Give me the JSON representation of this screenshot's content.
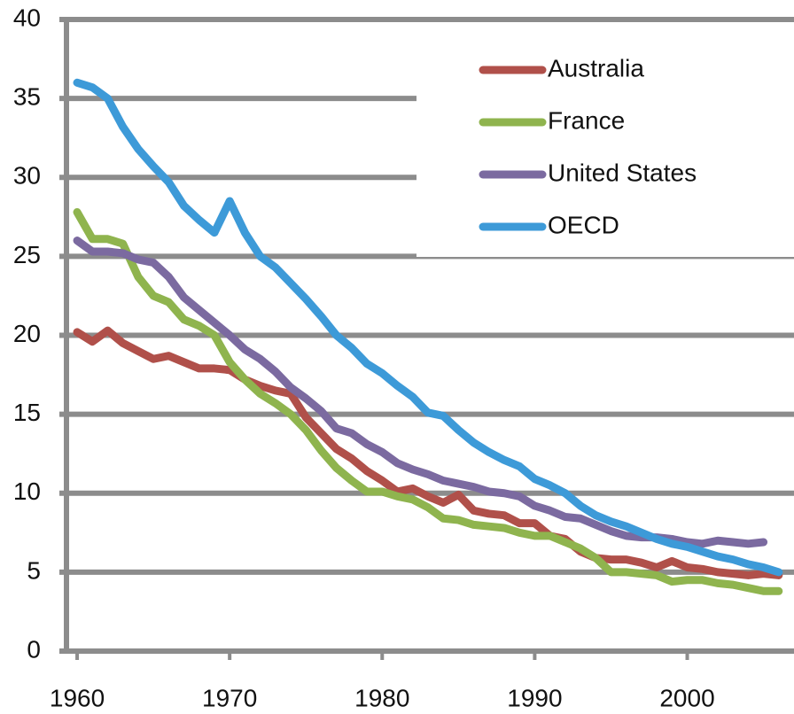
{
  "chart_data": {
    "type": "line",
    "x": [
      1960,
      1961,
      1962,
      1963,
      1964,
      1965,
      1966,
      1967,
      1968,
      1969,
      1970,
      1971,
      1972,
      1973,
      1974,
      1975,
      1976,
      1977,
      1978,
      1979,
      1980,
      1981,
      1982,
      1983,
      1984,
      1985,
      1986,
      1987,
      1988,
      1989,
      1990,
      1991,
      1992,
      1993,
      1994,
      1995,
      1996,
      1997,
      1998,
      1999,
      2000,
      2001,
      2002,
      2003,
      2004,
      2005,
      2006
    ],
    "series": [
      {
        "name": "Australia",
        "color": "#b0504a",
        "values": [
          20.2,
          19.6,
          20.3,
          19.5,
          19.0,
          18.5,
          18.7,
          18.3,
          17.9,
          17.9,
          17.8,
          17.2,
          16.8,
          16.5,
          16.3,
          14.8,
          13.8,
          12.8,
          12.2,
          11.4,
          10.8,
          10.1,
          10.3,
          9.8,
          9.4,
          9.9,
          8.9,
          8.7,
          8.6,
          8.1,
          8.1,
          7.3,
          7.1,
          6.3,
          5.9,
          5.8,
          5.8,
          5.6,
          5.3,
          5.7,
          5.3,
          5.2,
          5.0,
          4.9,
          4.8,
          4.9,
          4.8
        ]
      },
      {
        "name": "France",
        "color": "#8fb44e",
        "values": [
          27.8,
          26.1,
          26.1,
          25.8,
          23.7,
          22.5,
          22.1,
          21.0,
          20.6,
          20.0,
          18.3,
          17.2,
          16.3,
          15.7,
          15.0,
          14.0,
          12.7,
          11.6,
          10.8,
          10.1,
          10.1,
          9.8,
          9.6,
          9.1,
          8.4,
          8.3,
          8.0,
          7.9,
          7.8,
          7.5,
          7.3,
          7.3,
          6.9,
          6.5,
          5.9,
          5.0,
          5.0,
          4.9,
          4.8,
          4.4,
          4.5,
          4.5,
          4.3,
          4.2,
          4.0,
          3.8,
          3.8
        ]
      },
      {
        "name": "United States",
        "color": "#7b6aa0",
        "values": [
          26.0,
          25.3,
          25.3,
          25.2,
          24.8,
          24.6,
          23.7,
          22.4,
          21.6,
          20.8,
          20.0,
          19.1,
          18.5,
          17.7,
          16.7,
          16.0,
          15.2,
          14.1,
          13.8,
          13.1,
          12.6,
          11.9,
          11.5,
          11.2,
          10.8,
          10.6,
          10.4,
          10.1,
          10.0,
          9.8,
          9.2,
          8.9,
          8.5,
          8.4,
          8.0,
          7.6,
          7.3,
          7.2,
          7.2,
          7.1,
          6.9,
          6.8,
          7.0,
          6.9,
          6.8,
          6.9,
          null
        ]
      },
      {
        "name": "OECD",
        "color": "#3d9ad8",
        "values": [
          36.0,
          35.7,
          35.0,
          33.2,
          31.8,
          30.7,
          29.7,
          28.2,
          27.3,
          26.5,
          28.5,
          26.5,
          25.0,
          24.3,
          23.3,
          22.3,
          21.2,
          20.0,
          19.2,
          18.2,
          17.6,
          16.8,
          16.1,
          15.1,
          14.9,
          14.0,
          13.2,
          12.6,
          12.1,
          11.7,
          10.9,
          10.5,
          10.0,
          9.2,
          8.6,
          8.2,
          7.9,
          7.5,
          7.1,
          6.8,
          6.6,
          6.3,
          6.0,
          5.8,
          5.5,
          5.3,
          5.0
        ]
      }
    ],
    "xlim": [
      1959.3,
      2007
    ],
    "xticks": [
      1960,
      1970,
      1980,
      1990,
      2000
    ],
    "ylim": [
      0,
      40
    ],
    "yticks": [
      0,
      5,
      10,
      15,
      20,
      25,
      30,
      35,
      40
    ],
    "grid": true,
    "legend": "upper-right"
  }
}
